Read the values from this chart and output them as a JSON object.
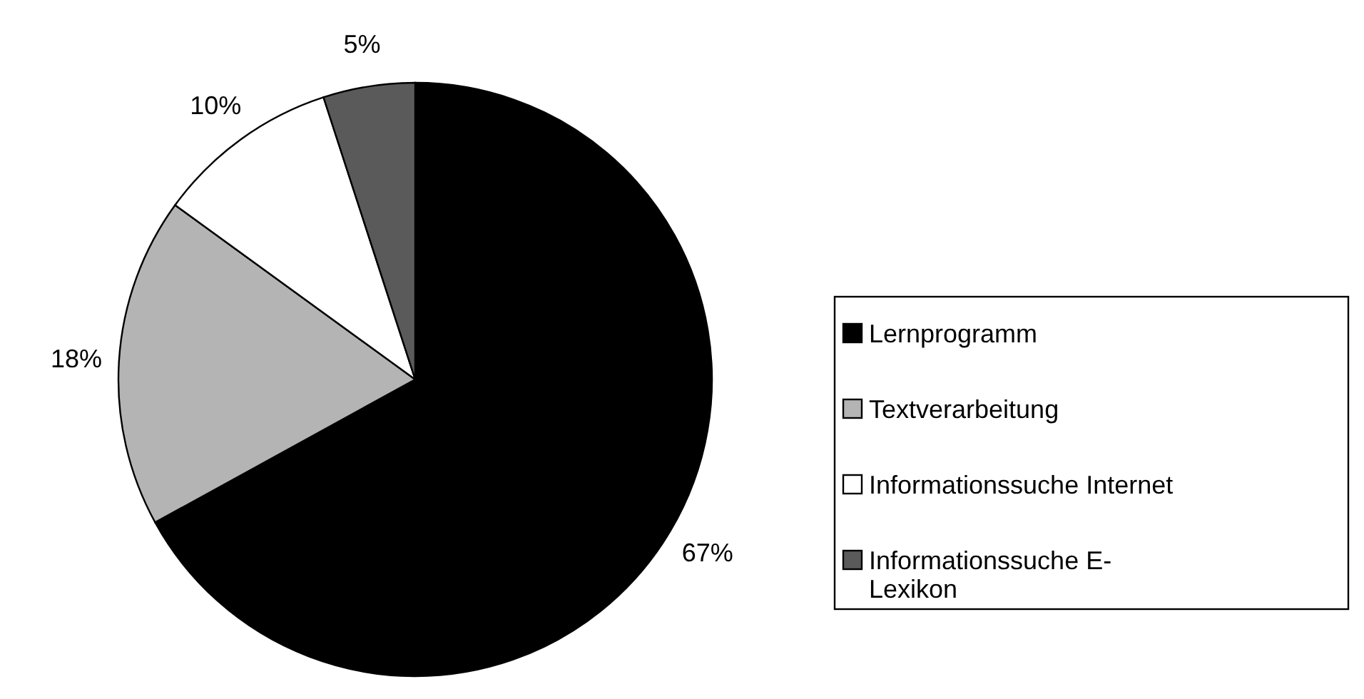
{
  "chart_data": {
    "type": "pie",
    "categories": [
      "Lernprogramm",
      "Textverarbeitung",
      "Informationssuche Internet",
      "Informationssuche E-Lexikon"
    ],
    "values": [
      67,
      18,
      10,
      5
    ],
    "colors": [
      "#000000",
      "#b4b4b4",
      "#ffffff",
      "#5a5a5a"
    ],
    "value_labels": [
      "67%",
      "18%",
      "10%",
      "5%"
    ],
    "legend": "right"
  }
}
